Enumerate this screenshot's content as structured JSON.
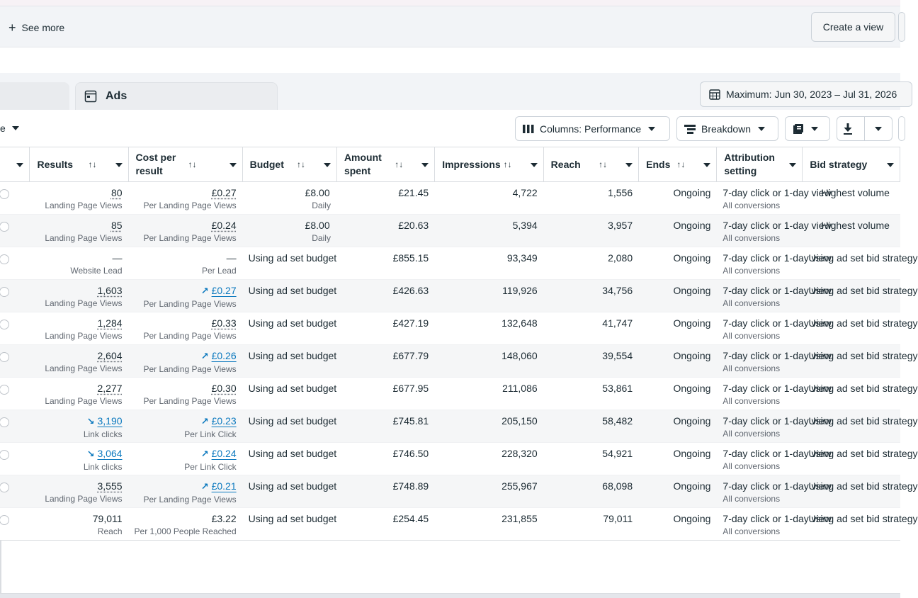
{
  "views_bar": {
    "see_more": "See more",
    "create_view": "Create a view"
  },
  "tabs": {
    "active": "Ads"
  },
  "date_range": "Maximum: Jun 30, 2023 – Jul 31, 2026",
  "toolbar": {
    "left_label": "e",
    "columns": "Columns: Performance",
    "breakdown": "Breakdown"
  },
  "columns": [
    {
      "label": "Results",
      "sort": "↑↓"
    },
    {
      "label": "Cost per result",
      "sort": "↑↓"
    },
    {
      "label": "Budget",
      "sort": "↑↓"
    },
    {
      "label": "Amount spent",
      "sort": "↑↓"
    },
    {
      "label": "Impressions",
      "sort": "↑↓"
    },
    {
      "label": "Reach",
      "sort": "↑↓"
    },
    {
      "label": "Ends",
      "sort": "↑↓"
    },
    {
      "label": "Attribution setting",
      "sort": ""
    },
    {
      "label": "Bid strategy",
      "sort": ""
    }
  ],
  "rows": [
    {
      "results": "80",
      "results_sub": "Landing Page Views",
      "results_trend": "",
      "results_link": false,
      "cpr": "£0.27",
      "cpr_sub": "Per Landing Page Views",
      "cpr_trend": "",
      "cpr_link": false,
      "budget": "£8.00",
      "budget_sub": "Daily",
      "amount": "£21.45",
      "impressions": "4,722",
      "reach": "1,556",
      "ends": "Ongoing",
      "attribution": "7-day click or 1-day view",
      "attribution_sub": "All conversions",
      "bid": "Highest volume"
    },
    {
      "results": "85",
      "results_sub": "Landing Page Views",
      "results_trend": "",
      "results_link": false,
      "cpr": "£0.24",
      "cpr_sub": "Per Landing Page Views",
      "cpr_trend": "",
      "cpr_link": false,
      "budget": "£8.00",
      "budget_sub": "Daily",
      "amount": "£20.63",
      "impressions": "5,394",
      "reach": "3,957",
      "ends": "Ongoing",
      "attribution": "7-day click or 1-day view",
      "attribution_sub": "All conversions",
      "bid": "Highest volume"
    },
    {
      "results": "—",
      "results_sub": "Website Lead",
      "results_trend": "",
      "results_link": false,
      "results_plain": true,
      "cpr": "—",
      "cpr_sub": "Per Lead",
      "cpr_trend": "",
      "cpr_link": false,
      "cpr_plain": true,
      "budget": "Using ad set budget",
      "budget_sub": "",
      "amount": "£855.15",
      "impressions": "93,349",
      "reach": "2,080",
      "ends": "Ongoing",
      "attribution": "7-day click or 1-day view",
      "attribution_sub": "All conversions",
      "bid": "Using ad set bid strategy"
    },
    {
      "results": "1,603",
      "results_sub": "Landing Page Views",
      "results_trend": "",
      "results_link": false,
      "cpr": "£0.27",
      "cpr_sub": "Per Landing Page Views",
      "cpr_trend": "↗",
      "cpr_link": true,
      "budget": "Using ad set budget",
      "budget_sub": "",
      "amount": "£426.63",
      "impressions": "119,926",
      "reach": "34,756",
      "ends": "Ongoing",
      "attribution": "7-day click or 1-day view",
      "attribution_sub": "All conversions",
      "bid": "Using ad set bid strategy"
    },
    {
      "results": "1,284",
      "results_sub": "Landing Page Views",
      "results_trend": "",
      "results_link": false,
      "cpr": "£0.33",
      "cpr_sub": "Per Landing Page Views",
      "cpr_trend": "",
      "cpr_link": false,
      "budget": "Using ad set budget",
      "budget_sub": "",
      "amount": "£427.19",
      "impressions": "132,648",
      "reach": "41,747",
      "ends": "Ongoing",
      "attribution": "7-day click or 1-day view",
      "attribution_sub": "All conversions",
      "bid": "Using ad set bid strategy"
    },
    {
      "results": "2,604",
      "results_sub": "Landing Page Views",
      "results_trend": "",
      "results_link": false,
      "cpr": "£0.26",
      "cpr_sub": "Per Landing Page Views",
      "cpr_trend": "↗",
      "cpr_link": true,
      "budget": "Using ad set budget",
      "budget_sub": "",
      "amount": "£677.79",
      "impressions": "148,060",
      "reach": "39,554",
      "ends": "Ongoing",
      "attribution": "7-day click or 1-day view",
      "attribution_sub": "All conversions",
      "bid": "Using ad set bid strategy"
    },
    {
      "results": "2,277",
      "results_sub": "Landing Page Views",
      "results_trend": "",
      "results_link": false,
      "cpr": "£0.30",
      "cpr_sub": "Per Landing Page Views",
      "cpr_trend": "",
      "cpr_link": false,
      "budget": "Using ad set budget",
      "budget_sub": "",
      "amount": "£677.95",
      "impressions": "211,086",
      "reach": "53,861",
      "ends": "Ongoing",
      "attribution": "7-day click or 1-day view",
      "attribution_sub": "All conversions",
      "bid": "Using ad set bid strategy"
    },
    {
      "results": "3,190",
      "results_sub": "Link clicks",
      "results_trend": "↘",
      "results_link": true,
      "cpr": "£0.23",
      "cpr_sub": "Per Link Click",
      "cpr_trend": "↗",
      "cpr_link": true,
      "budget": "Using ad set budget",
      "budget_sub": "",
      "amount": "£745.81",
      "impressions": "205,150",
      "reach": "58,482",
      "ends": "Ongoing",
      "attribution": "7-day click or 1-day view",
      "attribution_sub": "All conversions",
      "bid": "Using ad set bid strategy"
    },
    {
      "results": "3,064",
      "results_sub": "Link clicks",
      "results_trend": "↘",
      "results_link": true,
      "cpr": "£0.24",
      "cpr_sub": "Per Link Click",
      "cpr_trend": "↗",
      "cpr_link": true,
      "budget": "Using ad set budget",
      "budget_sub": "",
      "amount": "£746.50",
      "impressions": "228,320",
      "reach": "54,921",
      "ends": "Ongoing",
      "attribution": "7-day click or 1-day view",
      "attribution_sub": "All conversions",
      "bid": "Using ad set bid strategy"
    },
    {
      "results": "3,555",
      "results_sub": "Landing Page Views",
      "results_trend": "",
      "results_link": false,
      "cpr": "£0.21",
      "cpr_sub": "Per Landing Page Views",
      "cpr_trend": "↗",
      "cpr_link": true,
      "budget": "Using ad set budget",
      "budget_sub": "",
      "amount": "£748.89",
      "impressions": "255,967",
      "reach": "68,098",
      "ends": "Ongoing",
      "attribution": "7-day click or 1-day view",
      "attribution_sub": "All conversions",
      "bid": "Using ad set bid strategy"
    },
    {
      "results": "79,011",
      "results_sub": "Reach",
      "results_trend": "",
      "results_link": false,
      "results_plain": true,
      "cpr": "£3.22",
      "cpr_sub": "Per 1,000 People Reached",
      "cpr_trend": "",
      "cpr_link": false,
      "cpr_plain": true,
      "budget": "Using ad set budget",
      "budget_sub": "",
      "amount": "£254.45",
      "impressions": "231,855",
      "reach": "79,011",
      "ends": "Ongoing",
      "attribution": "7-day click or 1-day view",
      "attribution_sub": "All conversions",
      "bid": "Using ad set bid strategy"
    }
  ]
}
